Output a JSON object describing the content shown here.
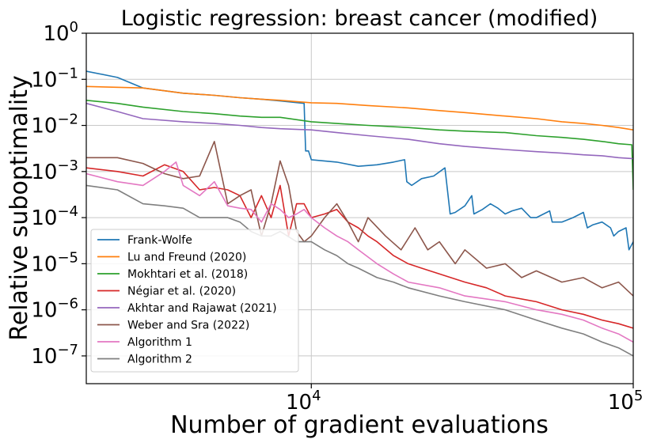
{
  "chart_data": {
    "type": "line",
    "title": "Logistic regression: breast cancer (modified)",
    "xlabel": "Number of gradient evaluations",
    "ylabel": "Relative suboptimality",
    "x_scale": "log",
    "y_scale": "log",
    "xlim": [
      2000,
      100000
    ],
    "ylim": [
      2.5e-08,
      1
    ],
    "x_ticks": [
      {
        "value": 10000,
        "base": "10",
        "exp": "4"
      },
      {
        "value": 100000,
        "base": "10",
        "exp": "5"
      }
    ],
    "y_ticks": [
      {
        "value": 1,
        "base": "10",
        "exp": "0"
      },
      {
        "value": 0.1,
        "base": "10",
        "exp": "−1"
      },
      {
        "value": 0.01,
        "base": "10",
        "exp": "−2"
      },
      {
        "value": 0.001,
        "base": "10",
        "exp": "−3"
      },
      {
        "value": 0.0001,
        "base": "10",
        "exp": "−4"
      },
      {
        "value": 1e-05,
        "base": "10",
        "exp": "−5"
      },
      {
        "value": 1e-06,
        "base": "10",
        "exp": "−6"
      },
      {
        "value": 1e-07,
        "base": "10",
        "exp": "−7"
      }
    ],
    "grid": true,
    "legend_position": "lower-left",
    "series": [
      {
        "name": "Frank-Wolfe",
        "color": "#1f77b4",
        "points": [
          [
            2000,
            0.15
          ],
          [
            2500,
            0.11
          ],
          [
            3000,
            0.065
          ],
          [
            4000,
            0.05
          ],
          [
            5000,
            0.045
          ],
          [
            6000,
            0.04
          ],
          [
            7000,
            0.037
          ],
          [
            8000,
            0.034
          ],
          [
            9500,
            0.03
          ],
          [
            9600,
            0.0028
          ],
          [
            9800,
            0.0028
          ],
          [
            10000,
            0.0018
          ],
          [
            12000,
            0.0016
          ],
          [
            14000,
            0.0013
          ],
          [
            16000,
            0.0014
          ],
          [
            18000,
            0.0016
          ],
          [
            19500,
            0.0018
          ],
          [
            19800,
            0.0006
          ],
          [
            20500,
            0.0005
          ],
          [
            22000,
            0.0007
          ],
          [
            24000,
            0.0008
          ],
          [
            26000,
            0.0012
          ],
          [
            27000,
            0.00012
          ],
          [
            28000,
            0.00013
          ],
          [
            30000,
            0.00018
          ],
          [
            31500,
            0.0003
          ],
          [
            32000,
            0.00012
          ],
          [
            34000,
            0.00015
          ],
          [
            36000,
            0.0002
          ],
          [
            38000,
            0.00016
          ],
          [
            40000,
            0.00012
          ],
          [
            42000,
            0.00014
          ],
          [
            45000,
            0.00016
          ],
          [
            48000,
            0.0001
          ],
          [
            50000,
            0.0001
          ],
          [
            55000,
            0.00014
          ],
          [
            56000,
            8e-05
          ],
          [
            60000,
            8e-05
          ],
          [
            65000,
            0.0001
          ],
          [
            70000,
            0.00013
          ],
          [
            72000,
            6e-05
          ],
          [
            75000,
            7e-05
          ],
          [
            80000,
            8e-05
          ],
          [
            85000,
            6e-05
          ],
          [
            87000,
            4e-05
          ],
          [
            90000,
            5e-05
          ],
          [
            95000,
            6e-05
          ],
          [
            97000,
            2e-05
          ],
          [
            100000,
            3e-05
          ]
        ]
      },
      {
        "name": "Lu and Freund (2020)",
        "color": "#ff7f0e",
        "points": [
          [
            2000,
            0.07
          ],
          [
            3000,
            0.065
          ],
          [
            4000,
            0.05
          ],
          [
            5000,
            0.045
          ],
          [
            6000,
            0.04
          ],
          [
            7000,
            0.037
          ],
          [
            8000,
            0.035
          ],
          [
            10000,
            0.031
          ],
          [
            12000,
            0.03
          ],
          [
            15000,
            0.027
          ],
          [
            20000,
            0.024
          ],
          [
            25000,
            0.021
          ],
          [
            30000,
            0.019
          ],
          [
            40000,
            0.016
          ],
          [
            50000,
            0.014
          ],
          [
            60000,
            0.012
          ],
          [
            70000,
            0.011
          ],
          [
            80000,
            0.01
          ],
          [
            90000,
            0.009
          ],
          [
            100000,
            0.008
          ]
        ]
      },
      {
        "name": "Mokhtari et al. (2018)",
        "color": "#2ca02c",
        "points": [
          [
            2000,
            0.035
          ],
          [
            2500,
            0.03
          ],
          [
            3000,
            0.025
          ],
          [
            4000,
            0.02
          ],
          [
            5000,
            0.018
          ],
          [
            6000,
            0.016
          ],
          [
            7000,
            0.015
          ],
          [
            8000,
            0.015
          ],
          [
            10000,
            0.012
          ],
          [
            12000,
            0.011
          ],
          [
            15000,
            0.01
          ],
          [
            20000,
            0.009
          ],
          [
            25000,
            0.008
          ],
          [
            30000,
            0.0075
          ],
          [
            40000,
            0.007
          ],
          [
            50000,
            0.006
          ],
          [
            60000,
            0.0055
          ],
          [
            70000,
            0.005
          ],
          [
            80000,
            0.0045
          ],
          [
            90000,
            0.004
          ],
          [
            99000,
            0.0038
          ],
          [
            100000,
            0.0004
          ]
        ]
      },
      {
        "name": "Négiar et al. (2020)",
        "color": "#d62728",
        "points": [
          [
            2000,
            0.0012
          ],
          [
            2500,
            0.001
          ],
          [
            3000,
            0.0008
          ],
          [
            3500,
            0.0014
          ],
          [
            4000,
            0.001
          ],
          [
            4500,
            0.0004
          ],
          [
            5000,
            0.00045
          ],
          [
            5500,
            0.0004
          ],
          [
            6000,
            0.0003
          ],
          [
            6500,
            0.0001
          ],
          [
            7000,
            0.0003
          ],
          [
            7500,
            0.0001
          ],
          [
            8000,
            0.0005
          ],
          [
            8500,
            4e-05
          ],
          [
            9000,
            0.0002
          ],
          [
            9500,
            0.0002
          ],
          [
            10000,
            0.0001
          ],
          [
            11000,
            0.00012
          ],
          [
            12000,
            0.00015
          ],
          [
            13000,
            8e-05
          ],
          [
            14000,
            6e-05
          ],
          [
            15000,
            4e-05
          ],
          [
            16000,
            3e-05
          ],
          [
            18000,
            1.5e-05
          ],
          [
            20000,
            1e-05
          ],
          [
            22000,
            8e-06
          ],
          [
            25000,
            6e-06
          ],
          [
            30000,
            4e-06
          ],
          [
            35000,
            3e-06
          ],
          [
            40000,
            2e-06
          ],
          [
            50000,
            1.5e-06
          ],
          [
            60000,
            1e-06
          ],
          [
            70000,
            8e-07
          ],
          [
            80000,
            6e-07
          ],
          [
            90000,
            5e-07
          ],
          [
            100000,
            4e-07
          ]
        ]
      },
      {
        "name": "Akhtar and Rajawat (2021)",
        "color": "#9467bd",
        "points": [
          [
            2000,
            0.03
          ],
          [
            2500,
            0.02
          ],
          [
            3000,
            0.014
          ],
          [
            4000,
            0.012
          ],
          [
            5000,
            0.011
          ],
          [
            6000,
            0.01
          ],
          [
            7000,
            0.009
          ],
          [
            8000,
            0.0085
          ],
          [
            10000,
            0.008
          ],
          [
            12000,
            0.007
          ],
          [
            15000,
            0.006
          ],
          [
            20000,
            0.005
          ],
          [
            25000,
            0.004
          ],
          [
            30000,
            0.0035
          ],
          [
            40000,
            0.003
          ],
          [
            50000,
            0.0027
          ],
          [
            60000,
            0.0025
          ],
          [
            70000,
            0.0023
          ],
          [
            80000,
            0.0022
          ],
          [
            90000,
            0.002
          ],
          [
            100000,
            0.0019
          ]
        ]
      },
      {
        "name": "Weber and Sra (2022)",
        "color": "#8c564b",
        "points": [
          [
            2000,
            0.002
          ],
          [
            2500,
            0.002
          ],
          [
            3000,
            0.0015
          ],
          [
            3500,
            0.0009
          ],
          [
            4000,
            0.0007
          ],
          [
            4500,
            0.0008
          ],
          [
            5000,
            0.0045
          ],
          [
            5500,
            0.0002
          ],
          [
            6000,
            0.0003
          ],
          [
            6500,
            0.0004
          ],
          [
            7000,
            4e-05
          ],
          [
            7500,
            0.0002
          ],
          [
            8000,
            0.0017
          ],
          [
            8500,
            0.0005
          ],
          [
            9000,
            5e-05
          ],
          [
            9500,
            3e-05
          ],
          [
            10000,
            4e-05
          ],
          [
            11000,
            0.0001
          ],
          [
            12000,
            0.0002
          ],
          [
            13000,
            8e-05
          ],
          [
            14000,
            3e-05
          ],
          [
            15000,
            0.0001
          ],
          [
            17000,
            4e-05
          ],
          [
            19000,
            2e-05
          ],
          [
            21000,
            6e-05
          ],
          [
            23000,
            2e-05
          ],
          [
            25000,
            3e-05
          ],
          [
            28000,
            1e-05
          ],
          [
            30000,
            2e-05
          ],
          [
            35000,
            8e-06
          ],
          [
            40000,
            1e-05
          ],
          [
            45000,
            5e-06
          ],
          [
            50000,
            7e-06
          ],
          [
            60000,
            4e-06
          ],
          [
            70000,
            5e-06
          ],
          [
            80000,
            3e-06
          ],
          [
            90000,
            4e-06
          ],
          [
            100000,
            2e-06
          ]
        ]
      },
      {
        "name": "Algorithm 1",
        "color": "#e377c2",
        "points": [
          [
            2000,
            0.0009
          ],
          [
            2500,
            0.0006
          ],
          [
            3000,
            0.0005
          ],
          [
            3500,
            0.001
          ],
          [
            3800,
            0.0016
          ],
          [
            4000,
            0.0005
          ],
          [
            4500,
            0.0003
          ],
          [
            5000,
            0.0006
          ],
          [
            5500,
            0.00018
          ],
          [
            6000,
            0.00016
          ],
          [
            6500,
            0.00015
          ],
          [
            7000,
            8e-05
          ],
          [
            7500,
            0.0002
          ],
          [
            8000,
            0.00015
          ],
          [
            8500,
            0.0001
          ],
          [
            9000,
            0.00012
          ],
          [
            9500,
            0.00015
          ],
          [
            10000,
            0.0001
          ],
          [
            11000,
            6e-05
          ],
          [
            12000,
            4e-05
          ],
          [
            13000,
            3e-05
          ],
          [
            14000,
            2e-05
          ],
          [
            16000,
            1e-05
          ],
          [
            18000,
            6e-06
          ],
          [
            20000,
            4e-06
          ],
          [
            25000,
            3e-06
          ],
          [
            30000,
            2e-06
          ],
          [
            40000,
            1.5e-06
          ],
          [
            50000,
            1e-06
          ],
          [
            60000,
            8e-07
          ],
          [
            70000,
            6e-07
          ],
          [
            80000,
            4e-07
          ],
          [
            90000,
            3e-07
          ],
          [
            100000,
            2e-07
          ]
        ]
      },
      {
        "name": "Algorithm 2",
        "color": "#7f7f7f",
        "points": [
          [
            2000,
            0.0005
          ],
          [
            2500,
            0.0004
          ],
          [
            3000,
            0.0002
          ],
          [
            3500,
            0.00018
          ],
          [
            4000,
            0.00016
          ],
          [
            4500,
            0.0001
          ],
          [
            5000,
            0.0001
          ],
          [
            5500,
            0.0001
          ],
          [
            6000,
            8e-05
          ],
          [
            6500,
            5e-05
          ],
          [
            7000,
            4e-05
          ],
          [
            7500,
            4e-05
          ],
          [
            8000,
            5e-05
          ],
          [
            9000,
            3e-05
          ],
          [
            10000,
            3e-05
          ],
          [
            11000,
            2e-05
          ],
          [
            12000,
            1.5e-05
          ],
          [
            13000,
            1e-05
          ],
          [
            14000,
            8e-06
          ],
          [
            16000,
            5e-06
          ],
          [
            18000,
            4e-06
          ],
          [
            20000,
            3e-06
          ],
          [
            25000,
            2e-06
          ],
          [
            30000,
            1.5e-06
          ],
          [
            40000,
            1e-06
          ],
          [
            50000,
            6e-07
          ],
          [
            60000,
            4e-07
          ],
          [
            70000,
            3e-07
          ],
          [
            80000,
            2e-07
          ],
          [
            90000,
            1.5e-07
          ],
          [
            100000,
            1e-07
          ]
        ]
      }
    ]
  }
}
